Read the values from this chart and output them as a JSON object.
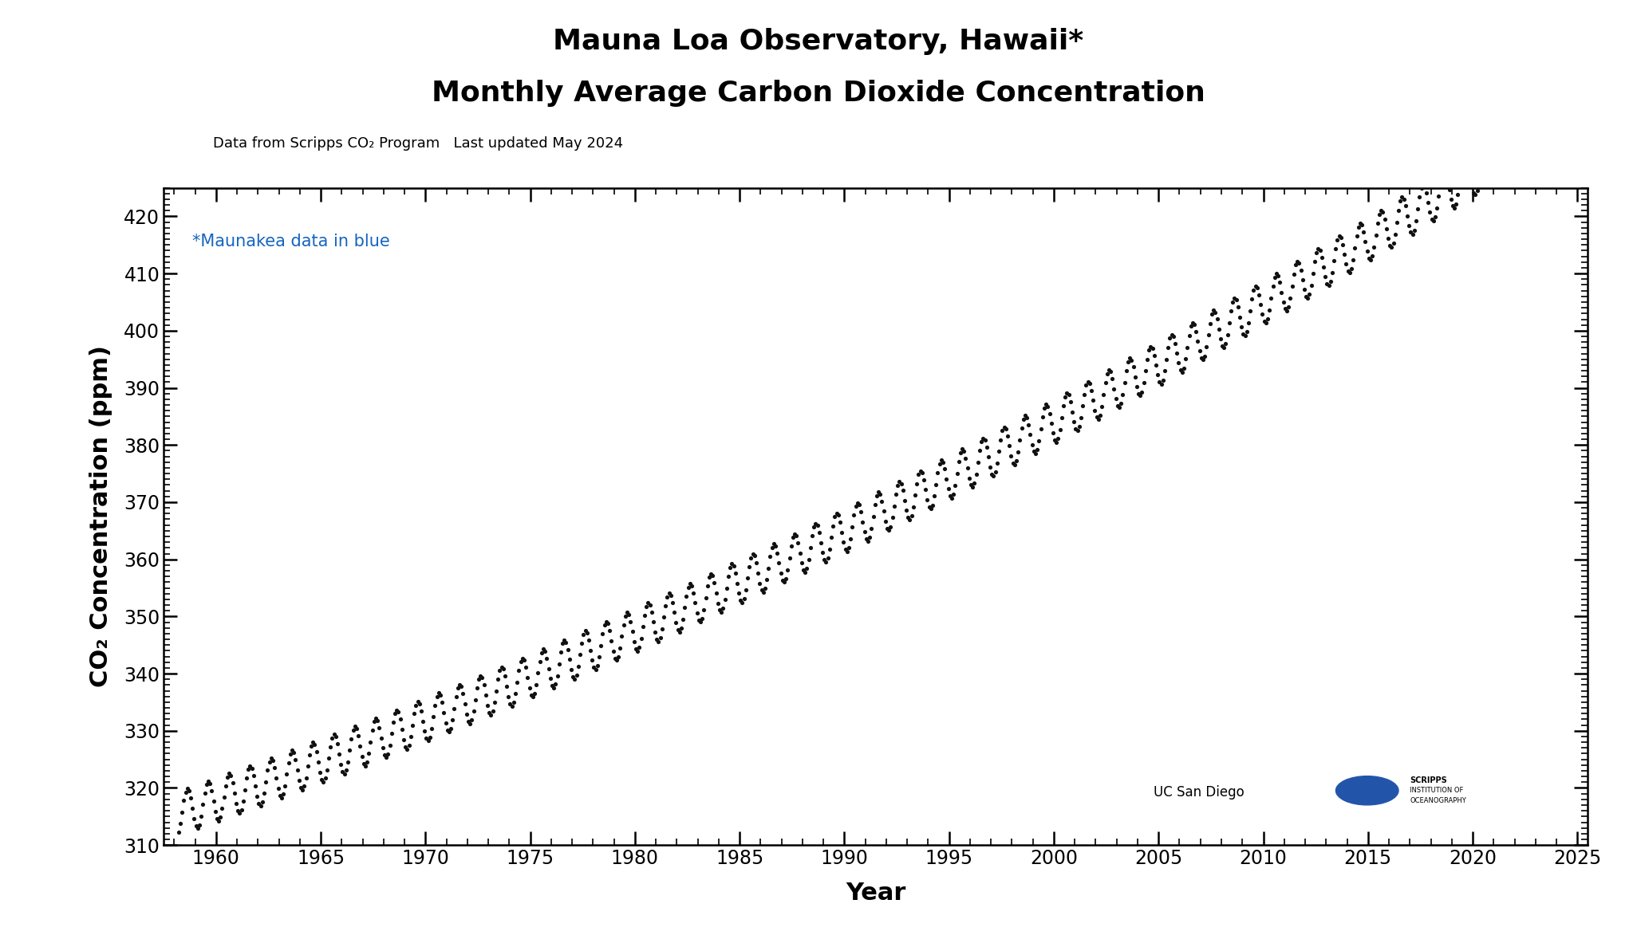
{
  "title_line1": "Mauna Loa Observatory, Hawaii*",
  "title_line2": "Monthly Average Carbon Dioxide Concentration",
  "subtitle": "Data from Scripps CO₂ Program   Last updated May 2024",
  "annotation": "*Maunakea data in blue",
  "xlabel": "Year",
  "ylabel": "CO₂ Concentration (ppm)",
  "xlim": [
    1957.5,
    2025.5
  ],
  "ylim": [
    310,
    425
  ],
  "yticks": [
    310,
    320,
    330,
    340,
    350,
    360,
    370,
    380,
    390,
    400,
    410,
    420
  ],
  "xticks": [
    1960,
    1965,
    1970,
    1975,
    1980,
    1985,
    1990,
    1995,
    2000,
    2005,
    2010,
    2015,
    2020,
    2025
  ],
  "dot_color": "#111111",
  "blue_dot_color": "#1565C0",
  "background_color": "#ffffff",
  "title_fontsize": 26,
  "subtitle_fontsize": 13,
  "axis_label_fontsize": 22,
  "tick_fontsize": 17,
  "annotation_fontsize": 15,
  "annotation_color": "#1565C0",
  "maunakea_start": 2022.5
}
